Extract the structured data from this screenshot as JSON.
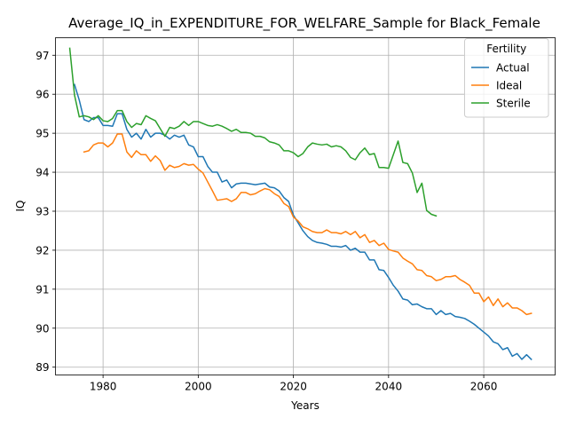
{
  "chart_data": {
    "type": "line",
    "title": "Average_IQ_in_EXPENDITURE_FOR_WELFARE_Sample for Black_Female",
    "xlabel": "Years",
    "ylabel": "IQ",
    "xlim": [
      1970,
      2075
    ],
    "ylim": [
      88.8,
      97.45
    ],
    "grid": true,
    "legend_title": "Fertility",
    "legend_position": "top-right",
    "x_ticks": [
      1980,
      2000,
      2020,
      2040,
      2060
    ],
    "y_ticks": [
      89,
      90,
      91,
      92,
      93,
      94,
      95,
      96,
      97
    ],
    "series": [
      {
        "name": "Actual",
        "color": "#1f77b4",
        "points": [
          [
            1974,
            96.25
          ],
          [
            1975,
            95.85
          ],
          [
            1976,
            95.35
          ],
          [
            1977,
            95.3
          ],
          [
            1978,
            95.4
          ],
          [
            1979,
            95.4
          ],
          [
            1980,
            95.2
          ],
          [
            1981,
            95.2
          ],
          [
            1982,
            95.18
          ],
          [
            1983,
            95.5
          ],
          [
            1984,
            95.5
          ],
          [
            1985,
            95.1
          ],
          [
            1986,
            94.9
          ],
          [
            1987,
            95.0
          ],
          [
            1988,
            94.85
          ],
          [
            1989,
            95.1
          ],
          [
            1990,
            94.9
          ],
          [
            1991,
            95.0
          ],
          [
            1992,
            95.0
          ],
          [
            1993,
            94.95
          ],
          [
            1994,
            94.85
          ],
          [
            1995,
            94.95
          ],
          [
            1996,
            94.9
          ],
          [
            1997,
            94.95
          ],
          [
            1998,
            94.7
          ],
          [
            1999,
            94.65
          ],
          [
            2000,
            94.4
          ],
          [
            2001,
            94.4
          ],
          [
            2002,
            94.15
          ],
          [
            2003,
            94.0
          ],
          [
            2004,
            94.0
          ],
          [
            2005,
            93.75
          ],
          [
            2006,
            93.8
          ],
          [
            2007,
            93.6
          ],
          [
            2008,
            93.7
          ],
          [
            2009,
            93.72
          ],
          [
            2010,
            93.72
          ],
          [
            2011,
            93.7
          ],
          [
            2012,
            93.68
          ],
          [
            2013,
            93.7
          ],
          [
            2014,
            93.72
          ],
          [
            2015,
            93.62
          ],
          [
            2016,
            93.6
          ],
          [
            2017,
            93.52
          ],
          [
            2018,
            93.35
          ],
          [
            2019,
            93.25
          ],
          [
            2020,
            92.9
          ],
          [
            2021,
            92.7
          ],
          [
            2022,
            92.5
          ],
          [
            2023,
            92.35
          ],
          [
            2024,
            92.25
          ],
          [
            2025,
            92.2
          ],
          [
            2026,
            92.18
          ],
          [
            2027,
            92.15
          ],
          [
            2028,
            92.1
          ],
          [
            2029,
            92.1
          ],
          [
            2030,
            92.08
          ],
          [
            2031,
            92.12
          ],
          [
            2032,
            92.0
          ],
          [
            2033,
            92.05
          ],
          [
            2034,
            91.95
          ],
          [
            2035,
            91.95
          ],
          [
            2036,
            91.75
          ],
          [
            2037,
            91.75
          ],
          [
            2038,
            91.5
          ],
          [
            2039,
            91.48
          ],
          [
            2040,
            91.3
          ],
          [
            2041,
            91.1
          ],
          [
            2042,
            90.95
          ],
          [
            2043,
            90.75
          ],
          [
            2044,
            90.72
          ],
          [
            2045,
            90.6
          ],
          [
            2046,
            90.62
          ],
          [
            2047,
            90.55
          ],
          [
            2048,
            90.5
          ],
          [
            2049,
            90.5
          ],
          [
            2050,
            90.35
          ],
          [
            2051,
            90.45
          ],
          [
            2052,
            90.35
          ],
          [
            2053,
            90.38
          ],
          [
            2054,
            90.3
          ],
          [
            2055,
            90.28
          ],
          [
            2056,
            90.25
          ],
          [
            2057,
            90.18
          ],
          [
            2058,
            90.1
          ],
          [
            2059,
            90.0
          ],
          [
            2060,
            89.9
          ],
          [
            2061,
            89.8
          ],
          [
            2062,
            89.65
          ],
          [
            2063,
            89.6
          ],
          [
            2064,
            89.45
          ],
          [
            2065,
            89.5
          ],
          [
            2066,
            89.28
          ],
          [
            2067,
            89.35
          ],
          [
            2068,
            89.2
          ],
          [
            2069,
            89.32
          ],
          [
            2070,
            89.2
          ]
        ]
      },
      {
        "name": "Ideal",
        "color": "#ff7f0e",
        "points": [
          [
            1976,
            94.52
          ],
          [
            1977,
            94.55
          ],
          [
            1978,
            94.7
          ],
          [
            1979,
            94.75
          ],
          [
            1980,
            94.75
          ],
          [
            1981,
            94.65
          ],
          [
            1982,
            94.75
          ],
          [
            1983,
            94.98
          ],
          [
            1984,
            94.98
          ],
          [
            1985,
            94.52
          ],
          [
            1986,
            94.38
          ],
          [
            1987,
            94.55
          ],
          [
            1988,
            94.45
          ],
          [
            1989,
            94.45
          ],
          [
            1990,
            94.28
          ],
          [
            1991,
            94.42
          ],
          [
            1992,
            94.3
          ],
          [
            1993,
            94.05
          ],
          [
            1994,
            94.18
          ],
          [
            1995,
            94.12
          ],
          [
            1996,
            94.15
          ],
          [
            1997,
            94.22
          ],
          [
            1998,
            94.18
          ],
          [
            1999,
            94.2
          ],
          [
            2000,
            94.08
          ],
          [
            2001,
            93.98
          ],
          [
            2002,
            93.75
          ],
          [
            2003,
            93.52
          ],
          [
            2004,
            93.28
          ],
          [
            2005,
            93.3
          ],
          [
            2006,
            93.32
          ],
          [
            2007,
            93.25
          ],
          [
            2008,
            93.32
          ],
          [
            2009,
            93.48
          ],
          [
            2010,
            93.48
          ],
          [
            2011,
            93.42
          ],
          [
            2012,
            93.45
          ],
          [
            2013,
            93.52
          ],
          [
            2014,
            93.58
          ],
          [
            2015,
            93.55
          ],
          [
            2016,
            93.45
          ],
          [
            2017,
            93.38
          ],
          [
            2018,
            93.2
          ],
          [
            2019,
            93.12
          ],
          [
            2020,
            92.85
          ],
          [
            2021,
            92.75
          ],
          [
            2022,
            92.6
          ],
          [
            2023,
            92.55
          ],
          [
            2024,
            92.48
          ],
          [
            2025,
            92.45
          ],
          [
            2026,
            92.45
          ],
          [
            2027,
            92.52
          ],
          [
            2028,
            92.45
          ],
          [
            2029,
            92.45
          ],
          [
            2030,
            92.42
          ],
          [
            2031,
            92.48
          ],
          [
            2032,
            92.4
          ],
          [
            2033,
            92.48
          ],
          [
            2034,
            92.32
          ],
          [
            2035,
            92.4
          ],
          [
            2036,
            92.2
          ],
          [
            2037,
            92.25
          ],
          [
            2038,
            92.12
          ],
          [
            2039,
            92.18
          ],
          [
            2040,
            92.02
          ],
          [
            2041,
            91.98
          ],
          [
            2042,
            91.95
          ],
          [
            2043,
            91.8
          ],
          [
            2044,
            91.72
          ],
          [
            2045,
            91.65
          ],
          [
            2046,
            91.5
          ],
          [
            2047,
            91.48
          ],
          [
            2048,
            91.35
          ],
          [
            2049,
            91.32
          ],
          [
            2050,
            91.22
          ],
          [
            2051,
            91.25
          ],
          [
            2052,
            91.32
          ],
          [
            2053,
            91.32
          ],
          [
            2054,
            91.35
          ],
          [
            2055,
            91.25
          ],
          [
            2056,
            91.18
          ],
          [
            2057,
            91.1
          ],
          [
            2058,
            90.9
          ],
          [
            2059,
            90.9
          ],
          [
            2060,
            90.68
          ],
          [
            2061,
            90.8
          ],
          [
            2062,
            90.58
          ],
          [
            2063,
            90.75
          ],
          [
            2064,
            90.55
          ],
          [
            2065,
            90.65
          ],
          [
            2066,
            90.52
          ],
          [
            2067,
            90.52
          ],
          [
            2068,
            90.45
          ],
          [
            2069,
            90.35
          ],
          [
            2070,
            90.38
          ]
        ]
      },
      {
        "name": "Sterile",
        "color": "#2ca02c",
        "points": [
          [
            1973,
            97.18
          ],
          [
            1974,
            95.98
          ],
          [
            1975,
            95.42
          ],
          [
            1976,
            95.45
          ],
          [
            1977,
            95.42
          ],
          [
            1978,
            95.35
          ],
          [
            1979,
            95.45
          ],
          [
            1980,
            95.32
          ],
          [
            1981,
            95.3
          ],
          [
            1982,
            95.38
          ],
          [
            1983,
            95.58
          ],
          [
            1984,
            95.58
          ],
          [
            1985,
            95.3
          ],
          [
            1986,
            95.15
          ],
          [
            1987,
            95.25
          ],
          [
            1988,
            95.22
          ],
          [
            1989,
            95.45
          ],
          [
            1990,
            95.38
          ],
          [
            1991,
            95.32
          ],
          [
            1992,
            95.12
          ],
          [
            1993,
            94.92
          ],
          [
            1994,
            95.15
          ],
          [
            1995,
            95.12
          ],
          [
            1996,
            95.18
          ],
          [
            1997,
            95.3
          ],
          [
            1998,
            95.2
          ],
          [
            1999,
            95.3
          ],
          [
            2000,
            95.3
          ],
          [
            2001,
            95.25
          ],
          [
            2002,
            95.2
          ],
          [
            2003,
            95.18
          ],
          [
            2004,
            95.22
          ],
          [
            2005,
            95.18
          ],
          [
            2006,
            95.12
          ],
          [
            2007,
            95.05
          ],
          [
            2008,
            95.1
          ],
          [
            2009,
            95.02
          ],
          [
            2010,
            95.02
          ],
          [
            2011,
            95.0
          ],
          [
            2012,
            94.92
          ],
          [
            2013,
            94.92
          ],
          [
            2014,
            94.88
          ],
          [
            2015,
            94.78
          ],
          [
            2016,
            94.75
          ],
          [
            2017,
            94.7
          ],
          [
            2018,
            94.55
          ],
          [
            2019,
            94.55
          ],
          [
            2020,
            94.5
          ],
          [
            2021,
            94.4
          ],
          [
            2022,
            94.48
          ],
          [
            2023,
            94.65
          ],
          [
            2024,
            94.75
          ],
          [
            2025,
            94.72
          ],
          [
            2026,
            94.7
          ],
          [
            2027,
            94.72
          ],
          [
            2028,
            94.65
          ],
          [
            2029,
            94.68
          ],
          [
            2030,
            94.65
          ],
          [
            2031,
            94.55
          ],
          [
            2032,
            94.38
          ],
          [
            2033,
            94.32
          ],
          [
            2034,
            94.5
          ],
          [
            2035,
            94.62
          ],
          [
            2036,
            94.45
          ],
          [
            2037,
            94.48
          ],
          [
            2038,
            94.12
          ],
          [
            2039,
            94.12
          ],
          [
            2040,
            94.1
          ],
          [
            2041,
            94.45
          ],
          [
            2042,
            94.8
          ],
          [
            2043,
            94.25
          ],
          [
            2044,
            94.22
          ],
          [
            2045,
            93.98
          ],
          [
            2046,
            93.48
          ],
          [
            2047,
            93.72
          ],
          [
            2048,
            93.02
          ],
          [
            2049,
            92.92
          ],
          [
            2050,
            92.88
          ]
        ]
      }
    ]
  }
}
